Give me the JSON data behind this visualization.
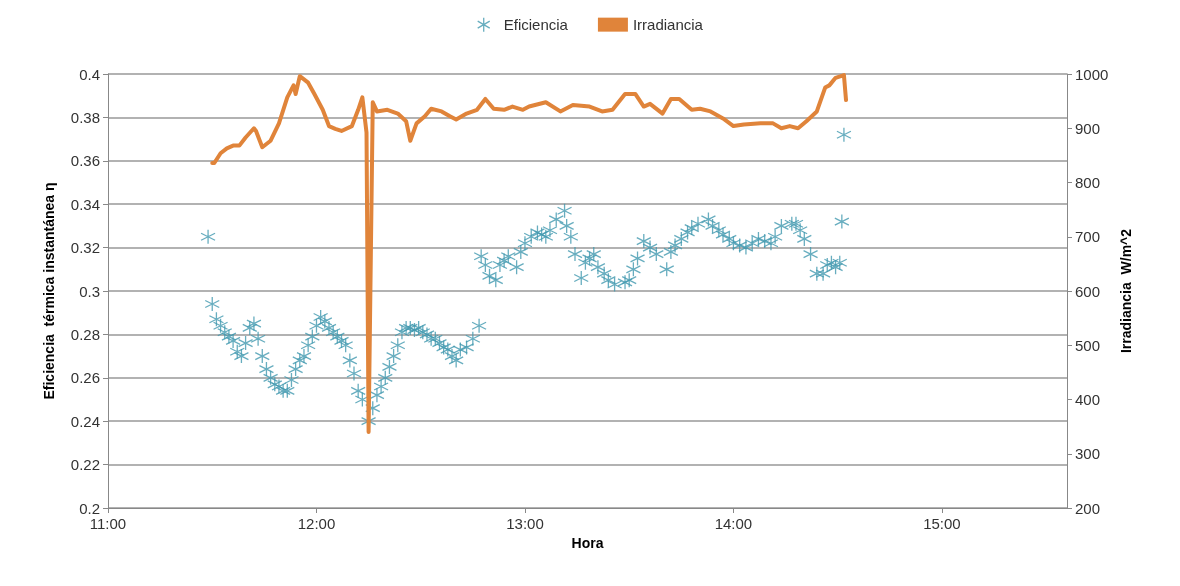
{
  "chart_data": {
    "type": "scatter",
    "xlabel": "Hora",
    "ylabel": "Eficiencia  térmica instantánea η",
    "y2label": "Irradiancia  W/m^2",
    "xlim": [
      11,
      15.6
    ],
    "xticks": [
      {
        "value": 11,
        "label": "11:00"
      },
      {
        "value": 12,
        "label": "12:00"
      },
      {
        "value": 13,
        "label": "13:00"
      },
      {
        "value": 14,
        "label": "14:00"
      },
      {
        "value": 15,
        "label": "15:00"
      }
    ],
    "ylim": [
      0.2,
      0.4
    ],
    "yticks": [
      0.2,
      0.22,
      0.24,
      0.26,
      0.28,
      0.3,
      0.32,
      0.34,
      0.36,
      0.38,
      0.4
    ],
    "y2lim": [
      200,
      1000
    ],
    "y2ticks": [
      200,
      300,
      400,
      500,
      600,
      700,
      800,
      900,
      1000
    ],
    "grid": "y",
    "legend": "top",
    "marker": "cross",
    "series": [
      {
        "name": "Eficiencia",
        "color": "#4198af",
        "x": [
          11.48,
          11.5,
          11.52,
          11.54,
          11.56,
          11.58,
          11.6,
          11.62,
          11.64,
          11.66,
          11.68,
          11.7,
          11.72,
          11.74,
          11.76,
          11.78,
          11.8,
          11.82,
          11.84,
          11.86,
          11.88,
          11.9,
          11.92,
          11.94,
          11.96,
          11.98,
          12.0,
          12.02,
          12.04,
          12.06,
          12.08,
          12.1,
          12.12,
          12.14,
          12.16,
          12.18,
          12.2,
          12.22,
          12.25,
          12.27,
          12.29,
          12.31,
          12.33,
          12.35,
          12.37,
          12.39,
          12.41,
          12.43,
          12.45,
          12.47,
          12.49,
          12.51,
          12.53,
          12.55,
          12.57,
          12.59,
          12.61,
          12.63,
          12.65,
          12.67,
          12.69,
          12.72,
          12.75,
          12.78,
          12.79,
          12.81,
          12.83,
          12.86,
          12.88,
          12.9,
          12.92,
          12.96,
          12.98,
          13.0,
          13.03,
          13.06,
          13.08,
          13.1,
          13.12,
          13.15,
          13.19,
          13.2,
          13.22,
          13.24,
          13.27,
          13.29,
          13.31,
          13.33,
          13.35,
          13.38,
          13.4,
          13.43,
          13.48,
          13.5,
          13.52,
          13.54,
          13.57,
          13.6,
          13.63,
          13.68,
          13.7,
          13.72,
          13.75,
          13.78,
          13.8,
          13.83,
          13.88,
          13.9,
          13.93,
          13.95,
          13.98,
          14.0,
          14.03,
          14.06,
          14.09,
          14.12,
          14.15,
          14.18,
          14.2,
          14.23,
          14.28,
          14.3,
          14.32,
          14.34,
          14.37,
          14.4,
          14.43,
          14.45,
          14.47,
          14.49,
          14.51,
          14.52,
          14.53
        ],
        "values": [
          0.325,
          0.294,
          0.287,
          0.284,
          0.281,
          0.279,
          0.277,
          0.272,
          0.27,
          0.276,
          0.283,
          0.285,
          0.278,
          0.27,
          0.264,
          0.26,
          0.257,
          0.256,
          0.254,
          0.254,
          0.259,
          0.264,
          0.268,
          0.27,
          0.275,
          0.279,
          0.284,
          0.288,
          0.286,
          0.283,
          0.281,
          0.279,
          0.277,
          0.275,
          0.268,
          0.262,
          0.254,
          0.25,
          0.24,
          0.246,
          0.252,
          0.256,
          0.26,
          0.265,
          0.27,
          0.275,
          0.281,
          0.283,
          0.283,
          0.282,
          0.283,
          0.281,
          0.28,
          0.278,
          0.278,
          0.276,
          0.274,
          0.273,
          0.27,
          0.268,
          0.273,
          0.274,
          0.278,
          0.284,
          0.316,
          0.312,
          0.307,
          0.305,
          0.312,
          0.314,
          0.316,
          0.311,
          0.318,
          0.322,
          0.325,
          0.327,
          0.326,
          0.325,
          0.328,
          0.333,
          0.337,
          0.33,
          0.325,
          0.317,
          0.306,
          0.313,
          0.315,
          0.317,
          0.311,
          0.308,
          0.305,
          0.303,
          0.304,
          0.305,
          0.31,
          0.315,
          0.323,
          0.32,
          0.317,
          0.31,
          0.318,
          0.321,
          0.324,
          0.327,
          0.329,
          0.331,
          0.333,
          0.33,
          0.328,
          0.326,
          0.324,
          0.322,
          0.321,
          0.32,
          0.322,
          0.324,
          0.323,
          0.322,
          0.325,
          0.33,
          0.331,
          0.331,
          0.328,
          0.324,
          0.317,
          0.308,
          0.308,
          0.312,
          0.313,
          0.311,
          0.313,
          0.332,
          0.372
        ]
      },
      {
        "name": "Irradiancia",
        "type": "line",
        "axis": "y2",
        "color": "#e0843a",
        "marker": "none",
        "line_style": "solid",
        "x": [
          11.5,
          11.51,
          11.54,
          11.57,
          11.6,
          11.63,
          11.66,
          11.7,
          11.71,
          11.74,
          11.78,
          11.82,
          11.86,
          11.89,
          11.9,
          11.92,
          11.96,
          11.99,
          12.03,
          12.06,
          12.09,
          12.12,
          12.17,
          12.2,
          12.22,
          12.24,
          12.25,
          12.27,
          12.29,
          12.34,
          12.39,
          12.43,
          12.45,
          12.48,
          12.52,
          12.55,
          12.6,
          12.64,
          12.67,
          12.72,
          12.77,
          12.81,
          12.85,
          12.9,
          12.94,
          12.99,
          13.02,
          13.1,
          13.17,
          13.23,
          13.31,
          13.37,
          13.42,
          13.48,
          13.53,
          13.57,
          13.6,
          13.66,
          13.7,
          13.74,
          13.8,
          13.84,
          13.89,
          13.95,
          14.0,
          14.05,
          14.13,
          14.19,
          14.23,
          14.27,
          14.31,
          14.35,
          14.4,
          14.44,
          14.46,
          14.49,
          14.53,
          14.54
        ],
        "values": [
          836,
          836,
          854,
          863,
          868,
          868,
          883,
          900,
          895,
          865,
          877,
          909,
          957,
          979,
          963,
          996,
          984,
          963,
          934,
          904,
          899,
          895,
          904,
          934,
          957,
          892,
          340,
          948,
          931,
          934,
          927,
          913,
          877,
          909,
          922,
          936,
          931,
          922,
          916,
          927,
          934,
          954,
          936,
          934,
          940,
          934,
          940,
          948,
          931,
          943,
          940,
          931,
          934,
          963,
          963,
          940,
          945,
          927,
          954,
          954,
          934,
          936,
          931,
          918,
          904,
          907,
          909,
          909,
          900,
          904,
          900,
          913,
          931,
          975,
          979,
          993,
          998,
          952
        ]
      }
    ]
  }
}
